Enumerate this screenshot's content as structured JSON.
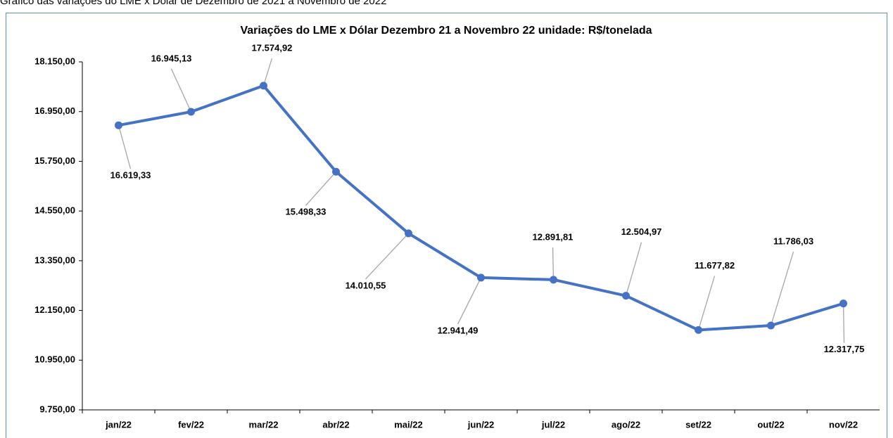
{
  "chart_data": {
    "type": "line",
    "caption": "Gráfico das variações do LME x Dólar de Dezembro de 2021 a Novembro de 2022",
    "title": "Variações do LME x Dólar Dezembro 21 a Novembro 22 unidade: R$/tonelada",
    "categories": [
      "jan/22",
      "fev/22",
      "mar/22",
      "abr/22",
      "mai/22",
      "jun/22",
      "jul/22",
      "ago/22",
      "set/22",
      "out/22",
      "nov/22"
    ],
    "values": [
      16619.33,
      16945.13,
      17574.92,
      15498.33,
      14010.55,
      12941.49,
      12891.81,
      12504.97,
      11677.82,
      11786.03,
      12317.75
    ],
    "value_labels": [
      "16.619,33",
      "16.945,13",
      "17.574,92",
      "15.498,33",
      "14.010,55",
      "12.941,49",
      "12.891,81",
      "12.504,97",
      "11.677,82",
      "11.786,03",
      "12.317,75"
    ],
    "color": "#4472c4",
    "ylim": [
      9750,
      18150
    ],
    "yticks": [
      {
        "value": 9750,
        "label": "9.750,00"
      },
      {
        "value": 10950,
        "label": "10.950,00"
      },
      {
        "value": 12150,
        "label": "12.150,00"
      },
      {
        "value": 13350,
        "label": "13.350,00"
      },
      {
        "value": 14550,
        "label": "14.550,00"
      },
      {
        "value": 15750,
        "label": "15.750,00"
      },
      {
        "value": 16950,
        "label": "16.950,00"
      },
      {
        "value": 18150,
        "label": "18.150,00"
      }
    ],
    "grid": false
  }
}
